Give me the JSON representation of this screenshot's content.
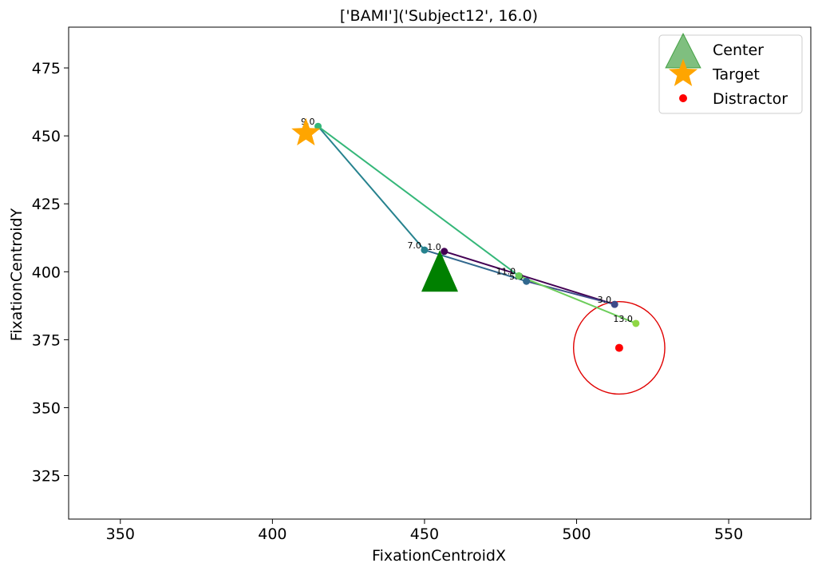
{
  "chart_data": {
    "type": "scatter",
    "title": "['BAMI']('Subject12', 16.0)",
    "xlabel": "FixationCentroidX",
    "ylabel": "FixationCentroidY",
    "xlim": [
      333,
      577
    ],
    "ylim": [
      309,
      490
    ],
    "xticks": [
      350,
      400,
      450,
      500,
      550
    ],
    "yticks": [
      325,
      350,
      375,
      400,
      425,
      450,
      475
    ],
    "grid": false,
    "legend_position": "top-right",
    "legend": [
      {
        "label": "Center",
        "marker": "triangle",
        "color": "#008000"
      },
      {
        "label": "Target",
        "marker": "star",
        "color": "#ffa500"
      },
      {
        "label": "Distractor",
        "marker": "circle",
        "color": "#ff0000"
      }
    ],
    "center": {
      "x": 455,
      "y": 400
    },
    "target": {
      "x": 411,
      "y": 451
    },
    "distractor": {
      "x": 514,
      "y": 372,
      "circle_radius_x": 15,
      "circle_radius_y": 17
    },
    "fixations": [
      {
        "label": "1.0",
        "x": 456.5,
        "y": 407.5
      },
      {
        "label": "3.0",
        "x": 512.5,
        "y": 388.0
      },
      {
        "label": "5.0",
        "x": 483.5,
        "y": 396.5
      },
      {
        "label": "7.0",
        "x": 450.0,
        "y": 408.0
      },
      {
        "label": "9.0",
        "x": 415.0,
        "y": 453.5
      },
      {
        "label": "11.0",
        "x": 481.0,
        "y": 398.5
      },
      {
        "label": "13.0",
        "x": 519.5,
        "y": 381.0
      }
    ],
    "series_colors": [
      "#440154",
      "#3e4a89",
      "#31688e",
      "#26828e",
      "#35b779",
      "#6ccd5a",
      "#8fd744"
    ]
  }
}
